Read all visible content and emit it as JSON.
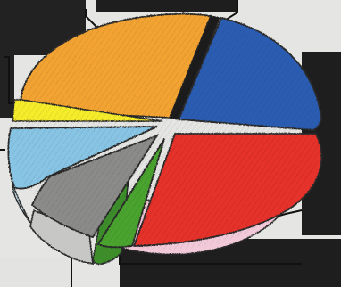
{
  "image": {
    "subject": "hand-drawn-3d-pie-chart",
    "colors": {
      "background": "#e4e4e2",
      "orange": "#f2a431",
      "blue": "#2a5fb3",
      "red": "#e4322c",
      "green": "#3f9a2c",
      "gray": "#8a8a88",
      "light_blue": "#86c3e4",
      "yellow": "#f4ec2a",
      "black": "#1a1a1a",
      "pink_side": "#f0c8d8"
    },
    "label_boxes": [
      "empty",
      "empty",
      "empty",
      "empty",
      "empty",
      "empty"
    ]
  }
}
